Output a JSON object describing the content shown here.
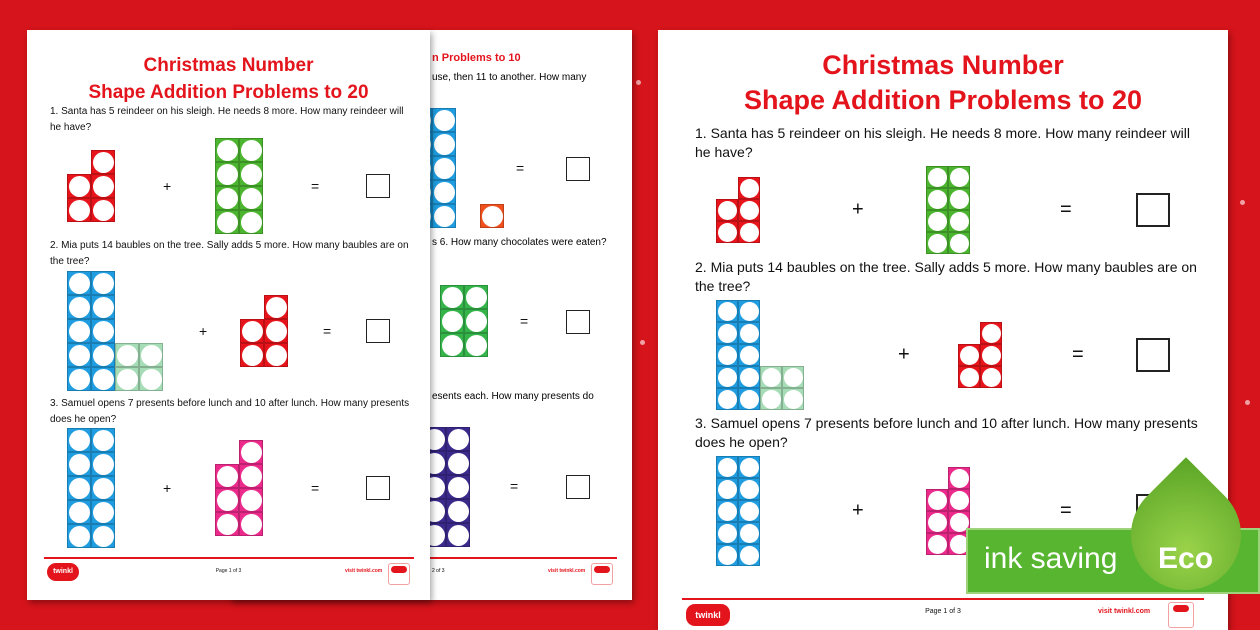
{
  "colors": {
    "background": "#d6141b",
    "title": "#e3141c",
    "eco_green": "#57b530"
  },
  "worksheet": {
    "title_line1": "Christmas Number",
    "title_line2": "Shape Addition Problems to 20",
    "questions": [
      {
        "text": "1.  Santa has 5 reindeer on his sleigh. He needs 8 more. How many reindeer will he have?",
        "shapes": [
          [
            {
              "count": 5,
              "color": "#e8141c"
            }
          ],
          [
            {
              "count": 8,
              "color": "#4cb52f"
            }
          ]
        ]
      },
      {
        "text": "2.  Mia puts 14 baubles on the tree. Sally adds 5 more. How many baubles are on the tree?",
        "shapes": [
          [
            {
              "count": 10,
              "color": "#1f9de0"
            },
            {
              "count": 4,
              "color": "#a6dcb6"
            }
          ],
          [
            {
              "count": 5,
              "color": "#e8141c"
            }
          ]
        ]
      },
      {
        "text": "3.  Samuel opens 7 presents before lunch and 10 after lunch. How many presents does he open?",
        "shapes": [
          [
            {
              "count": 10,
              "color": "#1f9de0"
            }
          ],
          [
            {
              "count": 7,
              "color": "#ec2a8c"
            }
          ]
        ]
      }
    ],
    "plus": "+",
    "equals": "=",
    "footer": {
      "logo": "twinkl",
      "page": "Page 1 of 3",
      "visit": "visit twinkl.com"
    }
  },
  "back_page": {
    "title_fragment": "n Problems to 10",
    "q1_fragment": "use, then 11 to another. How many",
    "q2_fragment": "s 6. How many chocolates were eaten?",
    "q3_fragment": "esents each. How many presents do",
    "equals": "=",
    "page": "2 of 3",
    "visit": "visit twinkl.com",
    "shapes": [
      [
        {
          "count": 10,
          "color": "#1f9de0"
        },
        {
          "count": 1,
          "color": "#f0501e"
        }
      ],
      [
        {
          "count": 6,
          "color": "#35b44a"
        }
      ],
      [
        {
          "count": 10,
          "color": "#3b2a8c"
        }
      ]
    ]
  },
  "eco_badge": {
    "text": "ink saving",
    "label": "Eco"
  }
}
